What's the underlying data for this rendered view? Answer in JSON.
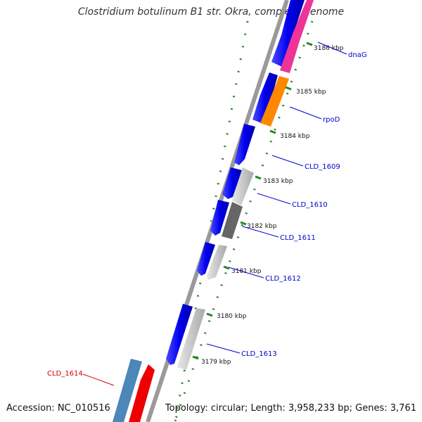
{
  "title": "Clostridium botulinum B1 str. Okra, complete genome",
  "accession": "Accession: NC_010516",
  "topology": "Topology: circular; Length: 3,958,233 bp; Genes: 3,761",
  "ticks": [
    {
      "label": "3186 kbp"
    },
    {
      "label": "3185 kbp"
    },
    {
      "label": "3184 kbp"
    },
    {
      "label": "3183 kbp"
    },
    {
      "label": "3182 kbp"
    },
    {
      "label": "3181 kbp"
    },
    {
      "label": "3180 kbp"
    },
    {
      "label": "3179 kbp"
    }
  ],
  "gene_labels": [
    {
      "label": "dnaG",
      "color": "#0000cc"
    },
    {
      "label": "rpoD",
      "color": "#0000cc"
    },
    {
      "label": "CLD_1609",
      "color": "#0000cc"
    },
    {
      "label": "CLD_1610",
      "color": "#0000cc"
    },
    {
      "label": "CLD_1611",
      "color": "#0000cc"
    },
    {
      "label": "CLD_1612",
      "color": "#0000cc"
    },
    {
      "label": "CLD_1613",
      "color": "#0000cc"
    },
    {
      "label": "CLD_1614",
      "color": "#dd0000"
    }
  ],
  "colors": {
    "cds_track": "#0000ee",
    "feature_pink": "#ee3399",
    "feature_orange": "#ff8800",
    "feature_light_gray": "#c8c8c8",
    "feature_dark_gray": "#666666",
    "feature_steel_blue": "#4d86b8",
    "feature_red": "#ee0000",
    "backbone": "#808080",
    "tick_marks": "#228822"
  }
}
